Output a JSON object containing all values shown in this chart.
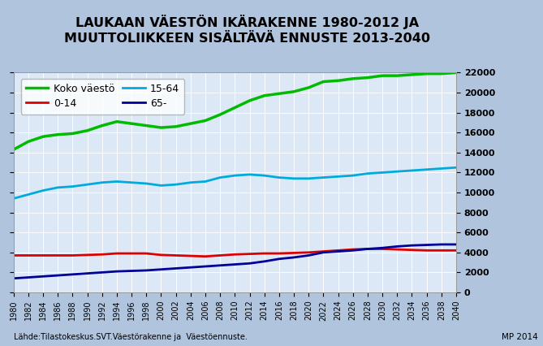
{
  "title": "LAUKAAN VÄESTÖN IKÄRAKENNE 1980-2012 JA\nMUUTTOLIIKKEEN SISÄLTÄVÄ ENNUSTE 2013-2040",
  "background_outer": "#b0c4de",
  "background_inner": "#dce8f5",
  "source_text": "Lähde:Tilastokeskus.SVT.Väestörakenne ja  Väestöennuste.",
  "credit_text": "MP 2014",
  "years": [
    1980,
    1982,
    1984,
    1986,
    1988,
    1990,
    1992,
    1994,
    1996,
    1998,
    2000,
    2002,
    2004,
    2006,
    2008,
    2010,
    2012,
    2014,
    2016,
    2018,
    2020,
    2022,
    2024,
    2026,
    2028,
    2030,
    2032,
    2034,
    2036,
    2038,
    2040
  ],
  "koko_vaesto": [
    14300,
    15100,
    15600,
    15800,
    15900,
    16200,
    16700,
    17100,
    16900,
    16700,
    16500,
    16600,
    16900,
    17200,
    17800,
    18500,
    19200,
    19700,
    19900,
    20100,
    20500,
    21100,
    21200,
    21400,
    21500,
    21700,
    21700,
    21800,
    21900,
    21900,
    22000
  ],
  "age_0_14": [
    3700,
    3700,
    3700,
    3700,
    3700,
    3750,
    3800,
    3900,
    3900,
    3900,
    3750,
    3700,
    3650,
    3600,
    3700,
    3800,
    3850,
    3900,
    3900,
    3950,
    4000,
    4100,
    4200,
    4300,
    4350,
    4350,
    4300,
    4250,
    4200,
    4200,
    4200
  ],
  "age_15_64": [
    9400,
    9800,
    10200,
    10500,
    10600,
    10800,
    11000,
    11100,
    11000,
    10900,
    10700,
    10800,
    11000,
    11100,
    11500,
    11700,
    11800,
    11700,
    11500,
    11400,
    11400,
    11500,
    11600,
    11700,
    11900,
    12000,
    12100,
    12200,
    12300,
    12400,
    12500
  ],
  "age_65_": [
    1400,
    1500,
    1600,
    1700,
    1800,
    1900,
    2000,
    2100,
    2150,
    2200,
    2300,
    2400,
    2500,
    2600,
    2700,
    2800,
    2900,
    3100,
    3350,
    3500,
    3700,
    4000,
    4100,
    4200,
    4350,
    4450,
    4600,
    4700,
    4750,
    4800,
    4800
  ],
  "series_colors": [
    "#00bb00",
    "#dd0000",
    "#00aadd",
    "#000099"
  ],
  "series_labels": [
    "Koko väestö",
    "0-14",
    "15-64",
    "65-"
  ],
  "ylim": [
    0,
    22000
  ],
  "yticks": [
    0,
    2000,
    4000,
    6000,
    8000,
    10000,
    12000,
    14000,
    16000,
    18000,
    20000,
    22000
  ],
  "title_fontsize": 11.5,
  "legend_fontsize": 9,
  "tick_fontsize": 8,
  "xtick_fontsize": 7
}
